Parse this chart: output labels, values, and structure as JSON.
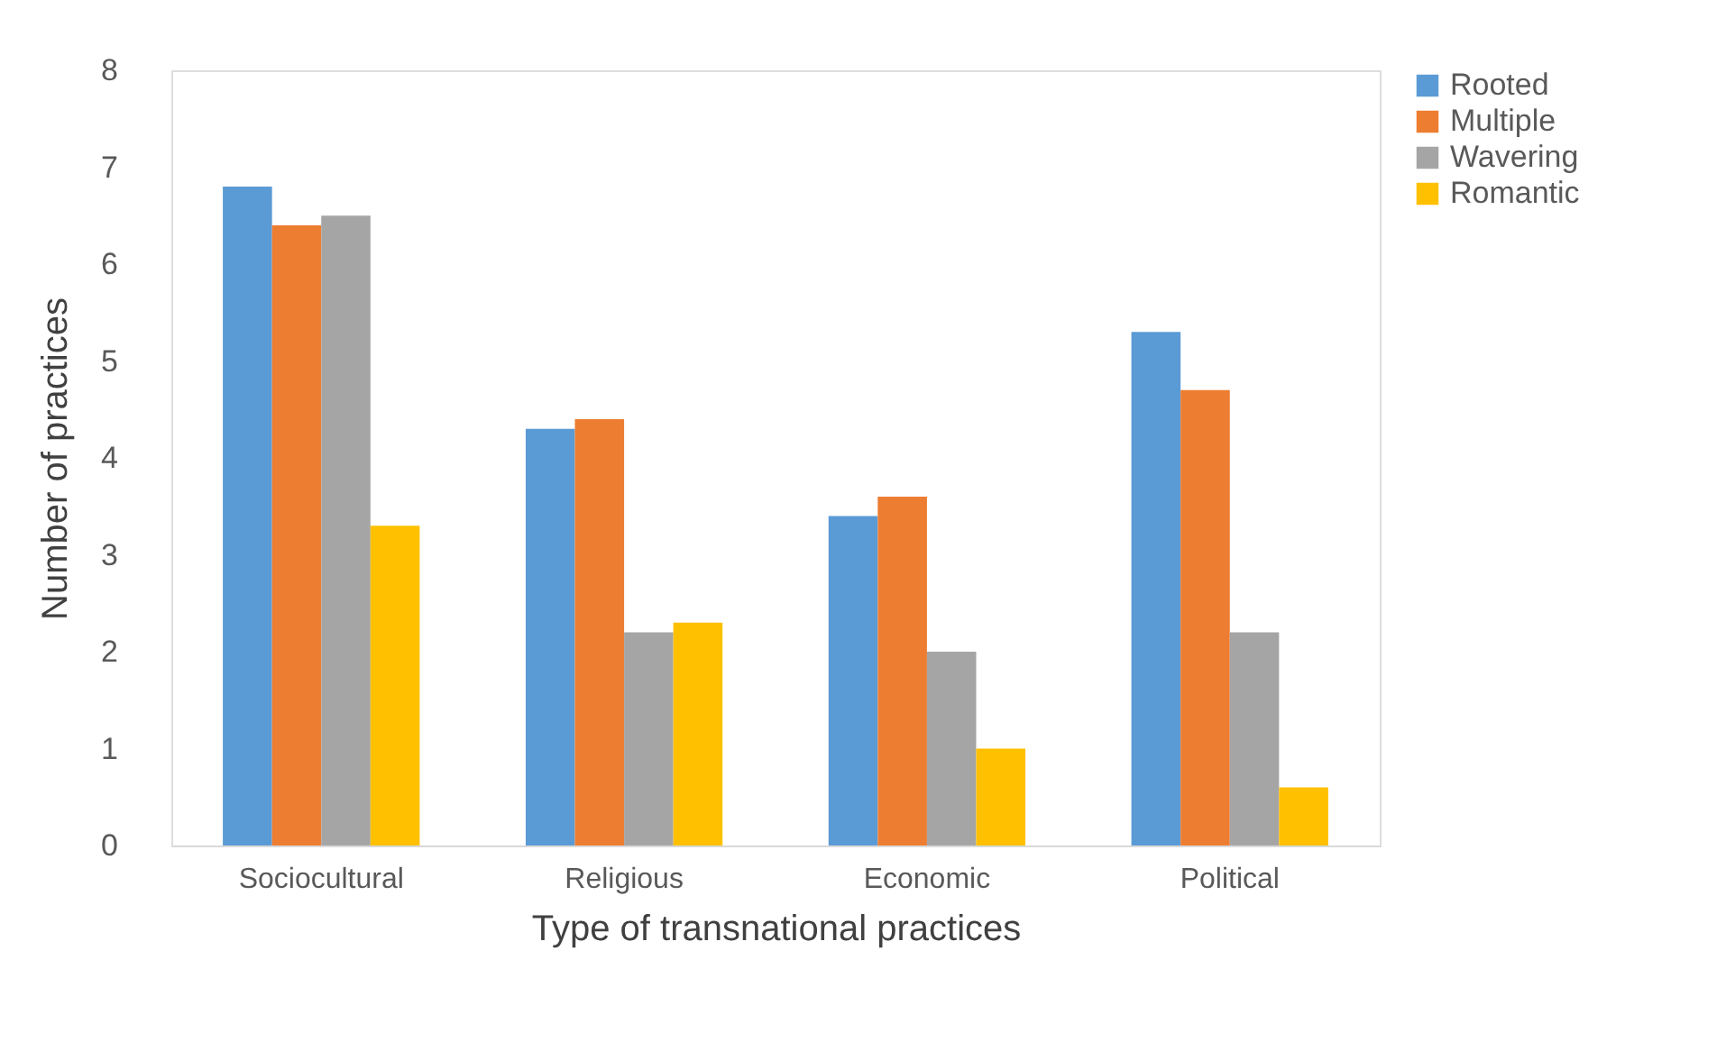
{
  "chart_data": {
    "type": "bar",
    "xlabel": "Type of transnational practices",
    "ylabel": "Number of  practices",
    "categories": [
      "Sociocultural",
      "Religious",
      "Economic",
      "Political"
    ],
    "series": [
      {
        "name": "Rooted",
        "color": "#5b9bd5",
        "values": [
          6.8,
          4.3,
          3.4,
          5.3
        ]
      },
      {
        "name": "Multiple",
        "color": "#ed7d31",
        "values": [
          6.4,
          4.4,
          3.6,
          4.7
        ]
      },
      {
        "name": "Wavering",
        "color": "#a5a5a5",
        "values": [
          6.5,
          2.2,
          2.0,
          2.2
        ]
      },
      {
        "name": "Romantic",
        "color": "#ffc000",
        "values": [
          3.3,
          2.3,
          1.0,
          0.6
        ]
      }
    ],
    "ylim": [
      0,
      8
    ],
    "yticks": [
      0,
      1,
      2,
      3,
      4,
      5,
      6,
      7,
      8
    ],
    "grid": false,
    "legend": "right"
  }
}
